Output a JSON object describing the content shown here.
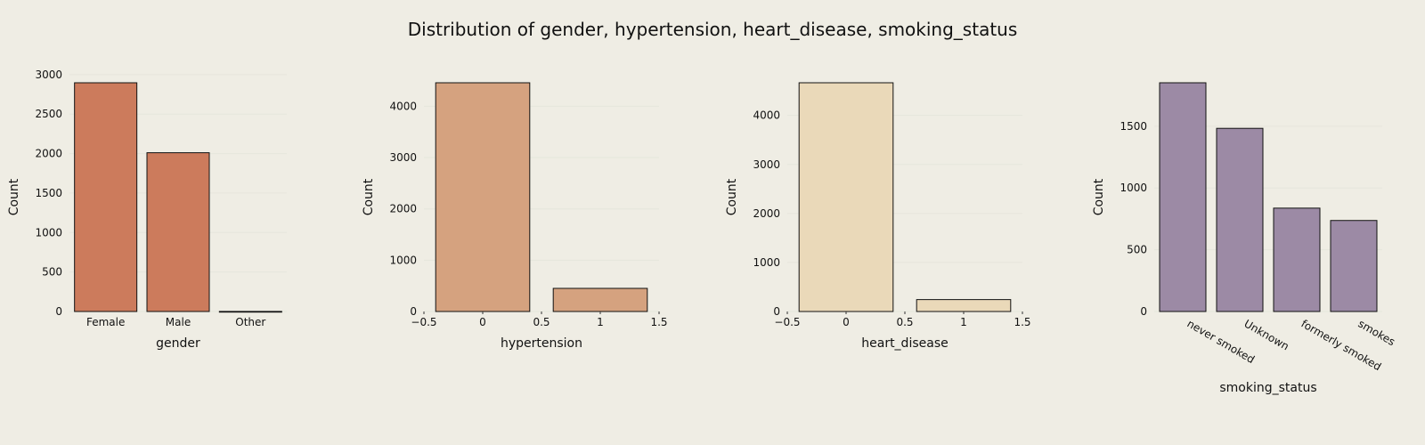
{
  "figure": {
    "title": "Distribution of gender, hypertension, heart_disease, smoking_status",
    "background": "#efede4"
  },
  "chart_data": [
    {
      "type": "bar",
      "xlabel": "gender",
      "ylabel": "Count",
      "categories": [
        "Female",
        "Male",
        "Other"
      ],
      "values": [
        2897,
        2011,
        1
      ],
      "ylim": [
        0,
        2897
      ],
      "yticks": [
        0,
        500,
        1000,
        1500,
        2000,
        2500,
        3000
      ],
      "color": "#cc7b5c",
      "grid": true
    },
    {
      "type": "bar",
      "xlabel": "hypertension",
      "ylabel": "Count",
      "x": [
        0,
        1
      ],
      "values": [
        4458,
        451
      ],
      "xlim": [
        -0.5,
        1.5
      ],
      "xticks": [
        "−0.5",
        "0",
        "0.5",
        "1",
        "1.5"
      ],
      "xtick_values": [
        -0.5,
        0,
        0.5,
        1,
        1.5
      ],
      "ylim": [
        0,
        4458
      ],
      "yticks": [
        0,
        1000,
        2000,
        3000,
        4000
      ],
      "color": "#d5a27f",
      "grid": true
    },
    {
      "type": "bar",
      "xlabel": "heart_disease",
      "ylabel": "Count",
      "x": [
        0,
        1
      ],
      "values": [
        4666,
        243
      ],
      "xlim": [
        -0.5,
        1.5
      ],
      "xticks": [
        "−0.5",
        "0",
        "0.5",
        "1",
        "1.5"
      ],
      "xtick_values": [
        -0.5,
        0,
        0.5,
        1,
        1.5
      ],
      "ylim": [
        0,
        4666
      ],
      "yticks": [
        0,
        1000,
        2000,
        3000,
        4000
      ],
      "color": "#ead9b9",
      "grid": true
    },
    {
      "type": "bar",
      "xlabel": "smoking_status",
      "ylabel": "Count",
      "categories": [
        "never smoked",
        "Unknown",
        "formerly smoked",
        "smokes"
      ],
      "values": [
        1852,
        1483,
        837,
        737
      ],
      "ylim": [
        0,
        1852
      ],
      "yticks": [
        0,
        500,
        1000,
        1500
      ],
      "color": "#9c8aa5",
      "grid": true
    }
  ]
}
